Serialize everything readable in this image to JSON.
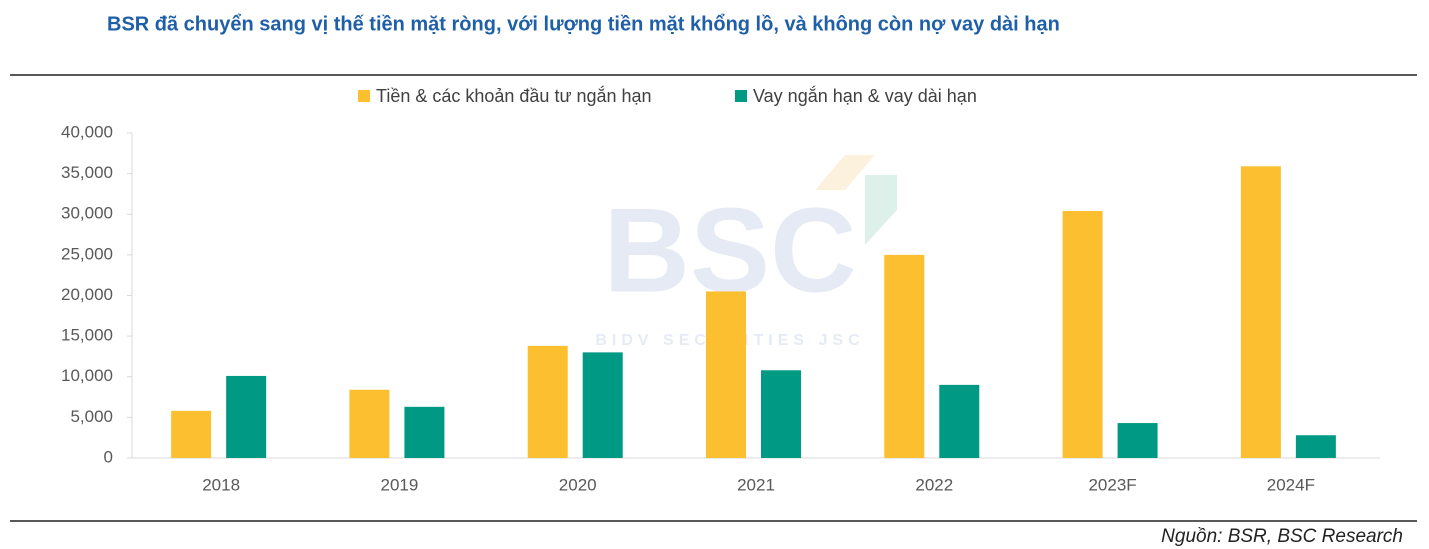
{
  "chart_data": {
    "type": "bar",
    "title": "BSR đã chuyển sang vị thế tiền mặt ròng, với lượng tiền mặt khổng lồ, và không còn nợ vay dài hạn",
    "categories": [
      "2018",
      "2019",
      "2020",
      "2021",
      "2022",
      "2023F",
      "2024F"
    ],
    "series": [
      {
        "name": "Tiền & các khoản đầu tư ngắn hạn",
        "color": "#fbbf2f",
        "values": [
          5800,
          8400,
          13800,
          20500,
          25000,
          30400,
          35900
        ]
      },
      {
        "name": "Vay ngắn hạn & vay dài hạn",
        "color": "#009983",
        "values": [
          10100,
          6300,
          13000,
          10800,
          9000,
          4300,
          2800
        ]
      }
    ],
    "ylim": [
      0,
      40000
    ],
    "yticks": [
      0,
      {
        "value": 5000,
        "label": "5,000"
      },
      {
        "value": 10000,
        "label": "10,000"
      },
      {
        "value": 15000,
        "label": "15,000"
      },
      {
        "value": 20000,
        "label": "20,000"
      },
      {
        "value": 25000,
        "label": "25,000"
      },
      {
        "value": 30000,
        "label": "30,000"
      },
      {
        "value": 35000,
        "label": "35,000"
      },
      {
        "value": 40000,
        "label": "40,000"
      }
    ],
    "grid": false,
    "watermark": {
      "logo": "BSC",
      "tagline": "BIDV SECURITIES JSC"
    },
    "source": "Nguồn: BSR, BSC Research"
  }
}
